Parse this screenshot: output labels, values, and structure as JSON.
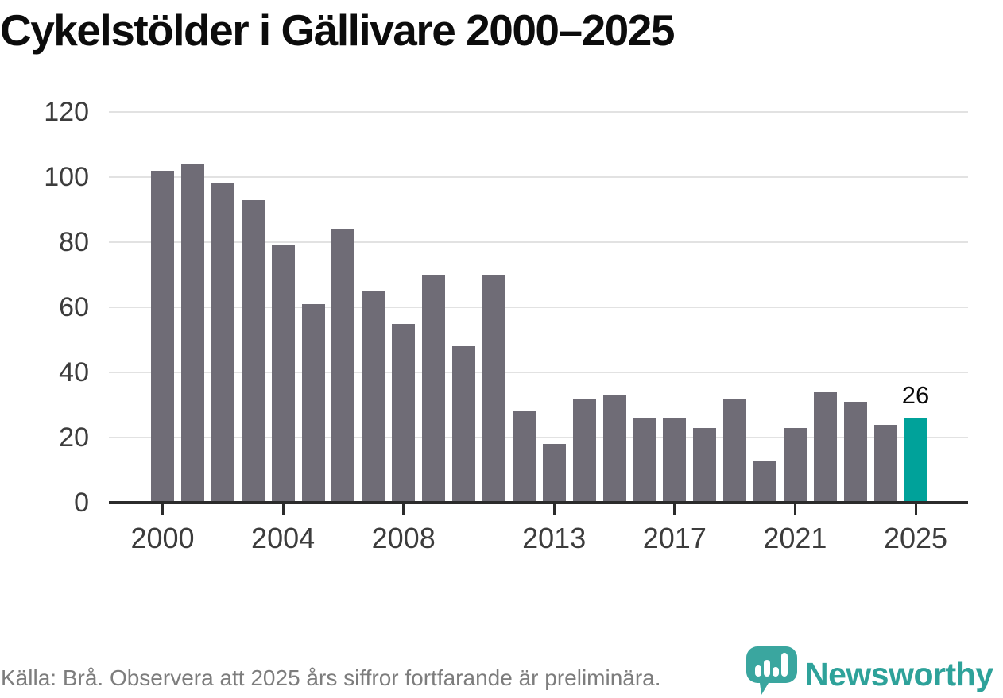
{
  "title": "Cykelstölder i Gällivare 2000–2025",
  "footer": {
    "source": "Källa: Brå. Observera att 2025 års siffror fortfarande är preliminära.",
    "logo_text": "Newsworthy"
  },
  "colors": {
    "bar": "#6f6c76",
    "accent": "#00a29a",
    "logo_icon": "#3aa69f",
    "logo_text": "#2ea29a",
    "grid": "#e2e2e2",
    "axis": "#2b2b2b",
    "axis_text": "#3c3c3c",
    "title_text": "#0c0c0c",
    "footer_text": "#7d7d7d",
    "bar_label_text": "#0a0a0a"
  },
  "chart_data": {
    "type": "bar",
    "title": "Cykelstölder i Gällivare 2000–2025",
    "xlabel": "",
    "ylabel": "",
    "categories": [
      2000,
      2001,
      2002,
      2003,
      2004,
      2005,
      2006,
      2007,
      2008,
      2009,
      2010,
      2011,
      2012,
      2013,
      2014,
      2015,
      2016,
      2017,
      2018,
      2019,
      2020,
      2021,
      2022,
      2023,
      2024,
      2025
    ],
    "values": [
      102,
      104,
      98,
      93,
      79,
      61,
      84,
      65,
      55,
      70,
      48,
      70,
      28,
      18,
      32,
      33,
      26,
      26,
      23,
      32,
      13,
      23,
      34,
      31,
      24,
      26
    ],
    "highlight_index": 25,
    "highlight_label": "26",
    "ylim": [
      0,
      120
    ],
    "y_ticks": [
      0,
      20,
      40,
      60,
      80,
      100,
      120
    ],
    "x_tick_years": [
      2000,
      2004,
      2008,
      2013,
      2017,
      2021,
      2025
    ],
    "grid": true,
    "legend": false,
    "source_note": "Källa: Brå. Observera att 2025 års siffror fortfarande är preliminära."
  }
}
